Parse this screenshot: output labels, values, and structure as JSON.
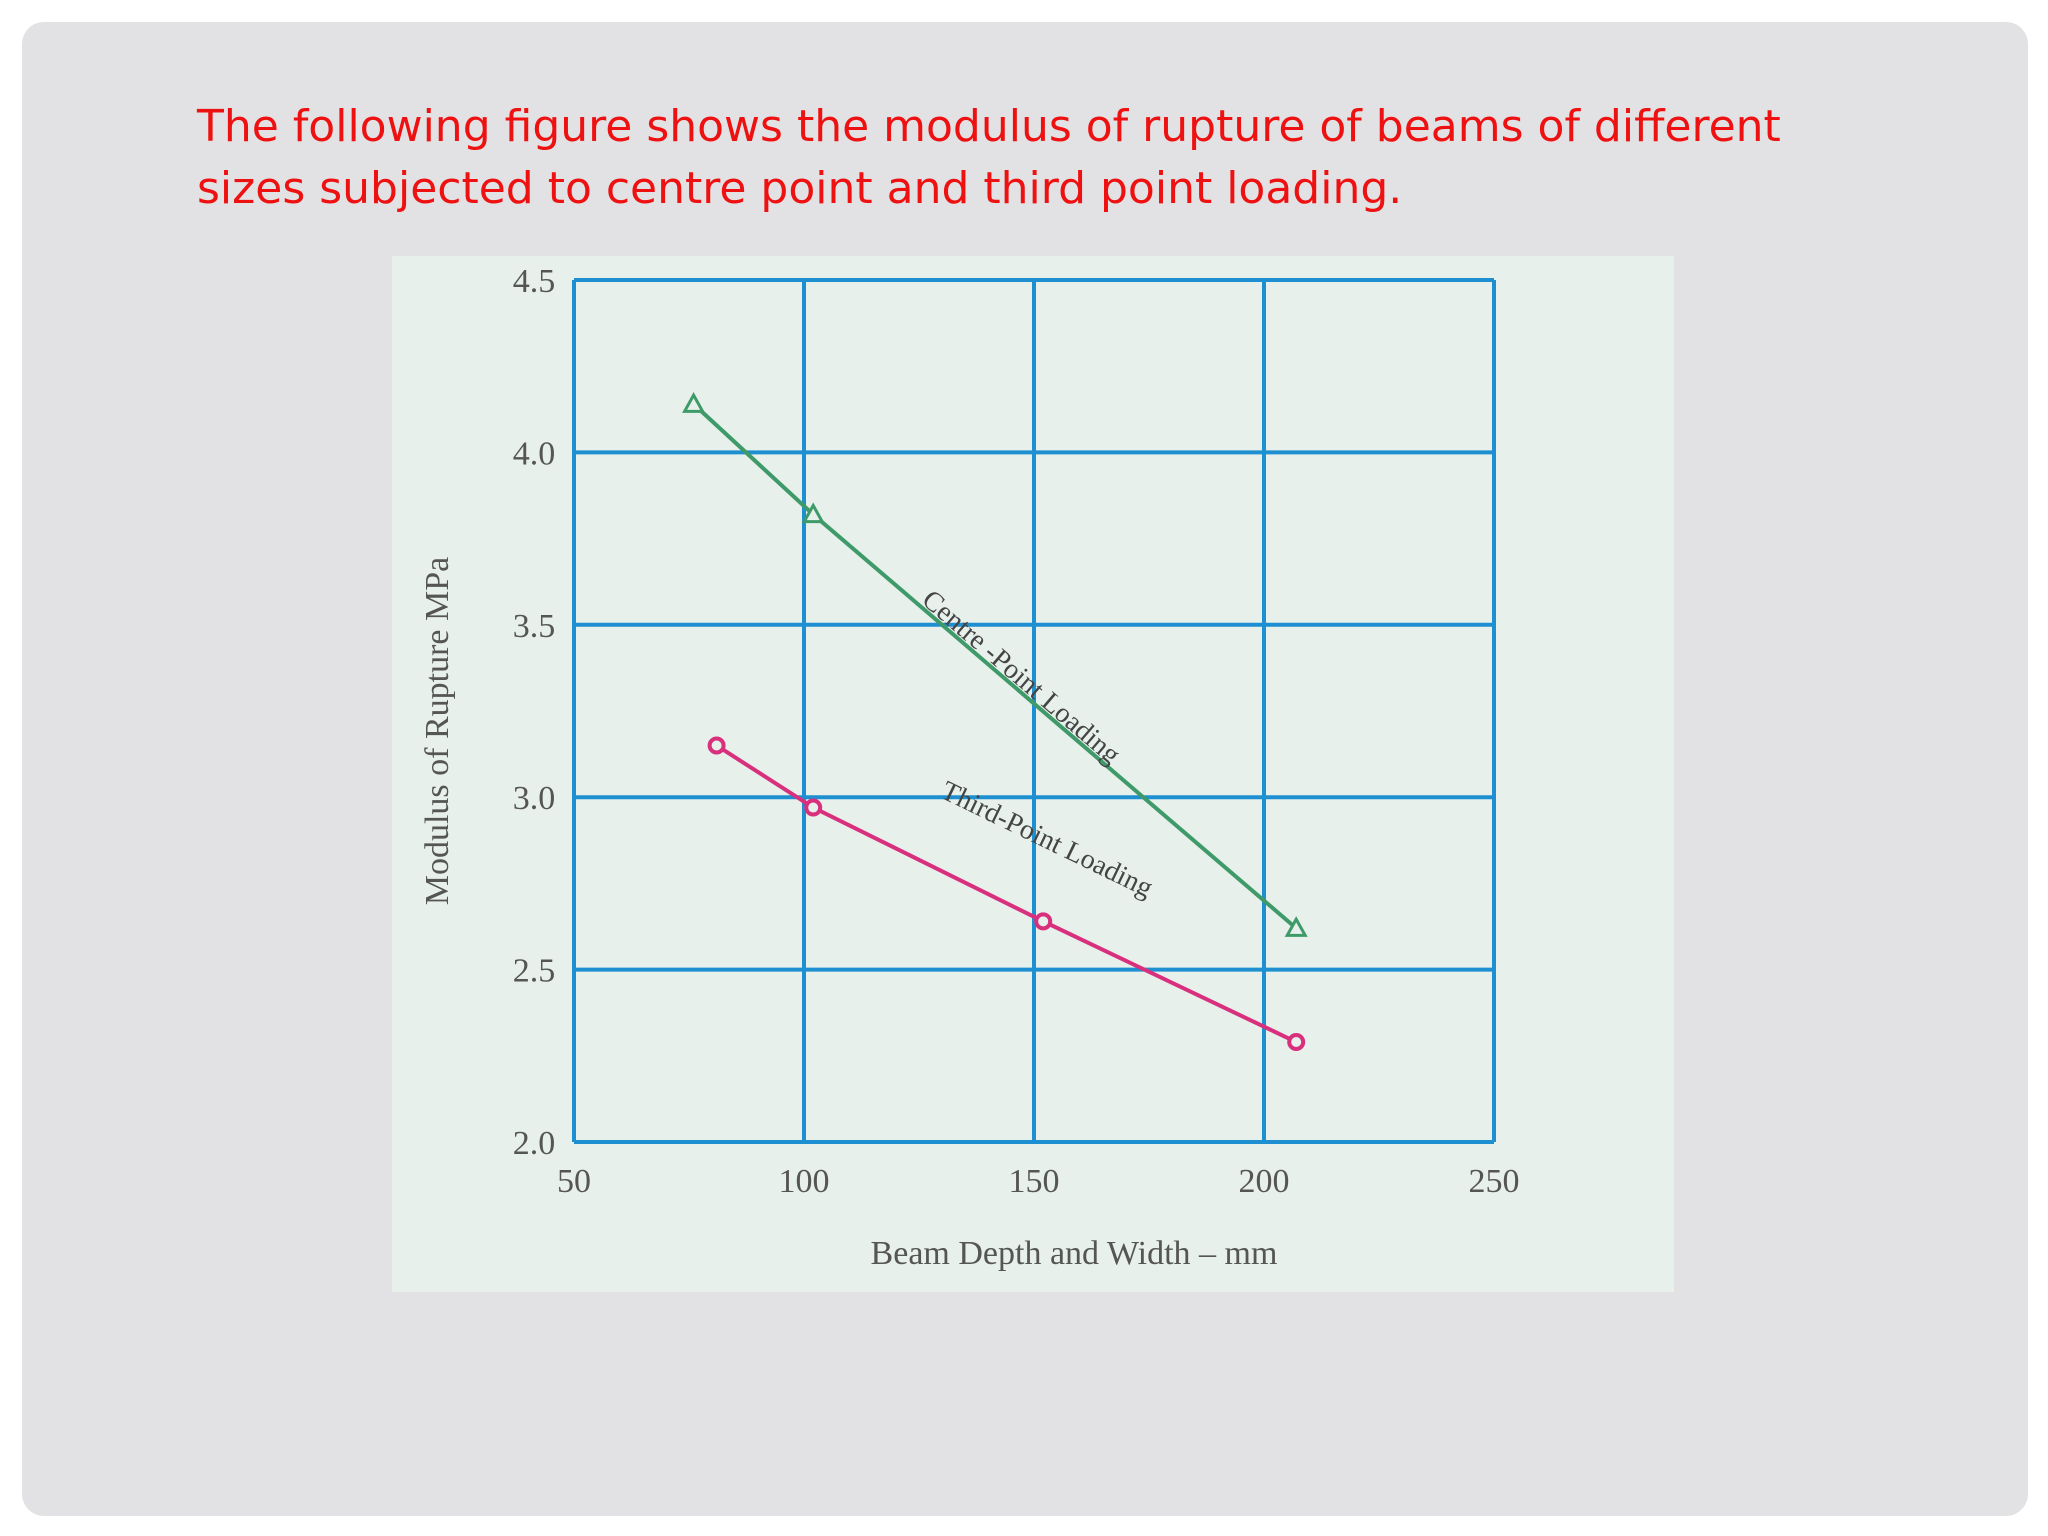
{
  "caption": {
    "line1": "The following figure shows the modulus of rupture of beams of different",
    "line2": "sizes subjected to centre point and third point loading."
  },
  "colors": {
    "caption": "#ee1111",
    "grid": "#1e8fd0",
    "centre_series": "#3f9a6a",
    "third_series": "#d9307e"
  },
  "chart_data": {
    "type": "line",
    "title": "",
    "xlabel": "Beam Depth and Width – mm",
    "ylabel": "Modulus of Rupture MPa",
    "xlim": [
      50,
      250
    ],
    "ylim": [
      2.0,
      4.5
    ],
    "xticks": [
      "50",
      "100",
      "150",
      "200",
      "250"
    ],
    "yticks": [
      "2.0",
      "2.5",
      "3.0",
      "3.5",
      "4.0",
      "4.5"
    ],
    "grid": true,
    "series": [
      {
        "name": "Centre -Point Loading",
        "marker": "triangle",
        "x": [
          76,
          102,
          207
        ],
        "y": [
          4.14,
          3.82,
          2.62
        ]
      },
      {
        "name": "Third-Point Loading",
        "marker": "circle",
        "x": [
          81,
          102,
          152,
          207
        ],
        "y": [
          3.15,
          2.97,
          2.64,
          2.29
        ]
      }
    ]
  }
}
